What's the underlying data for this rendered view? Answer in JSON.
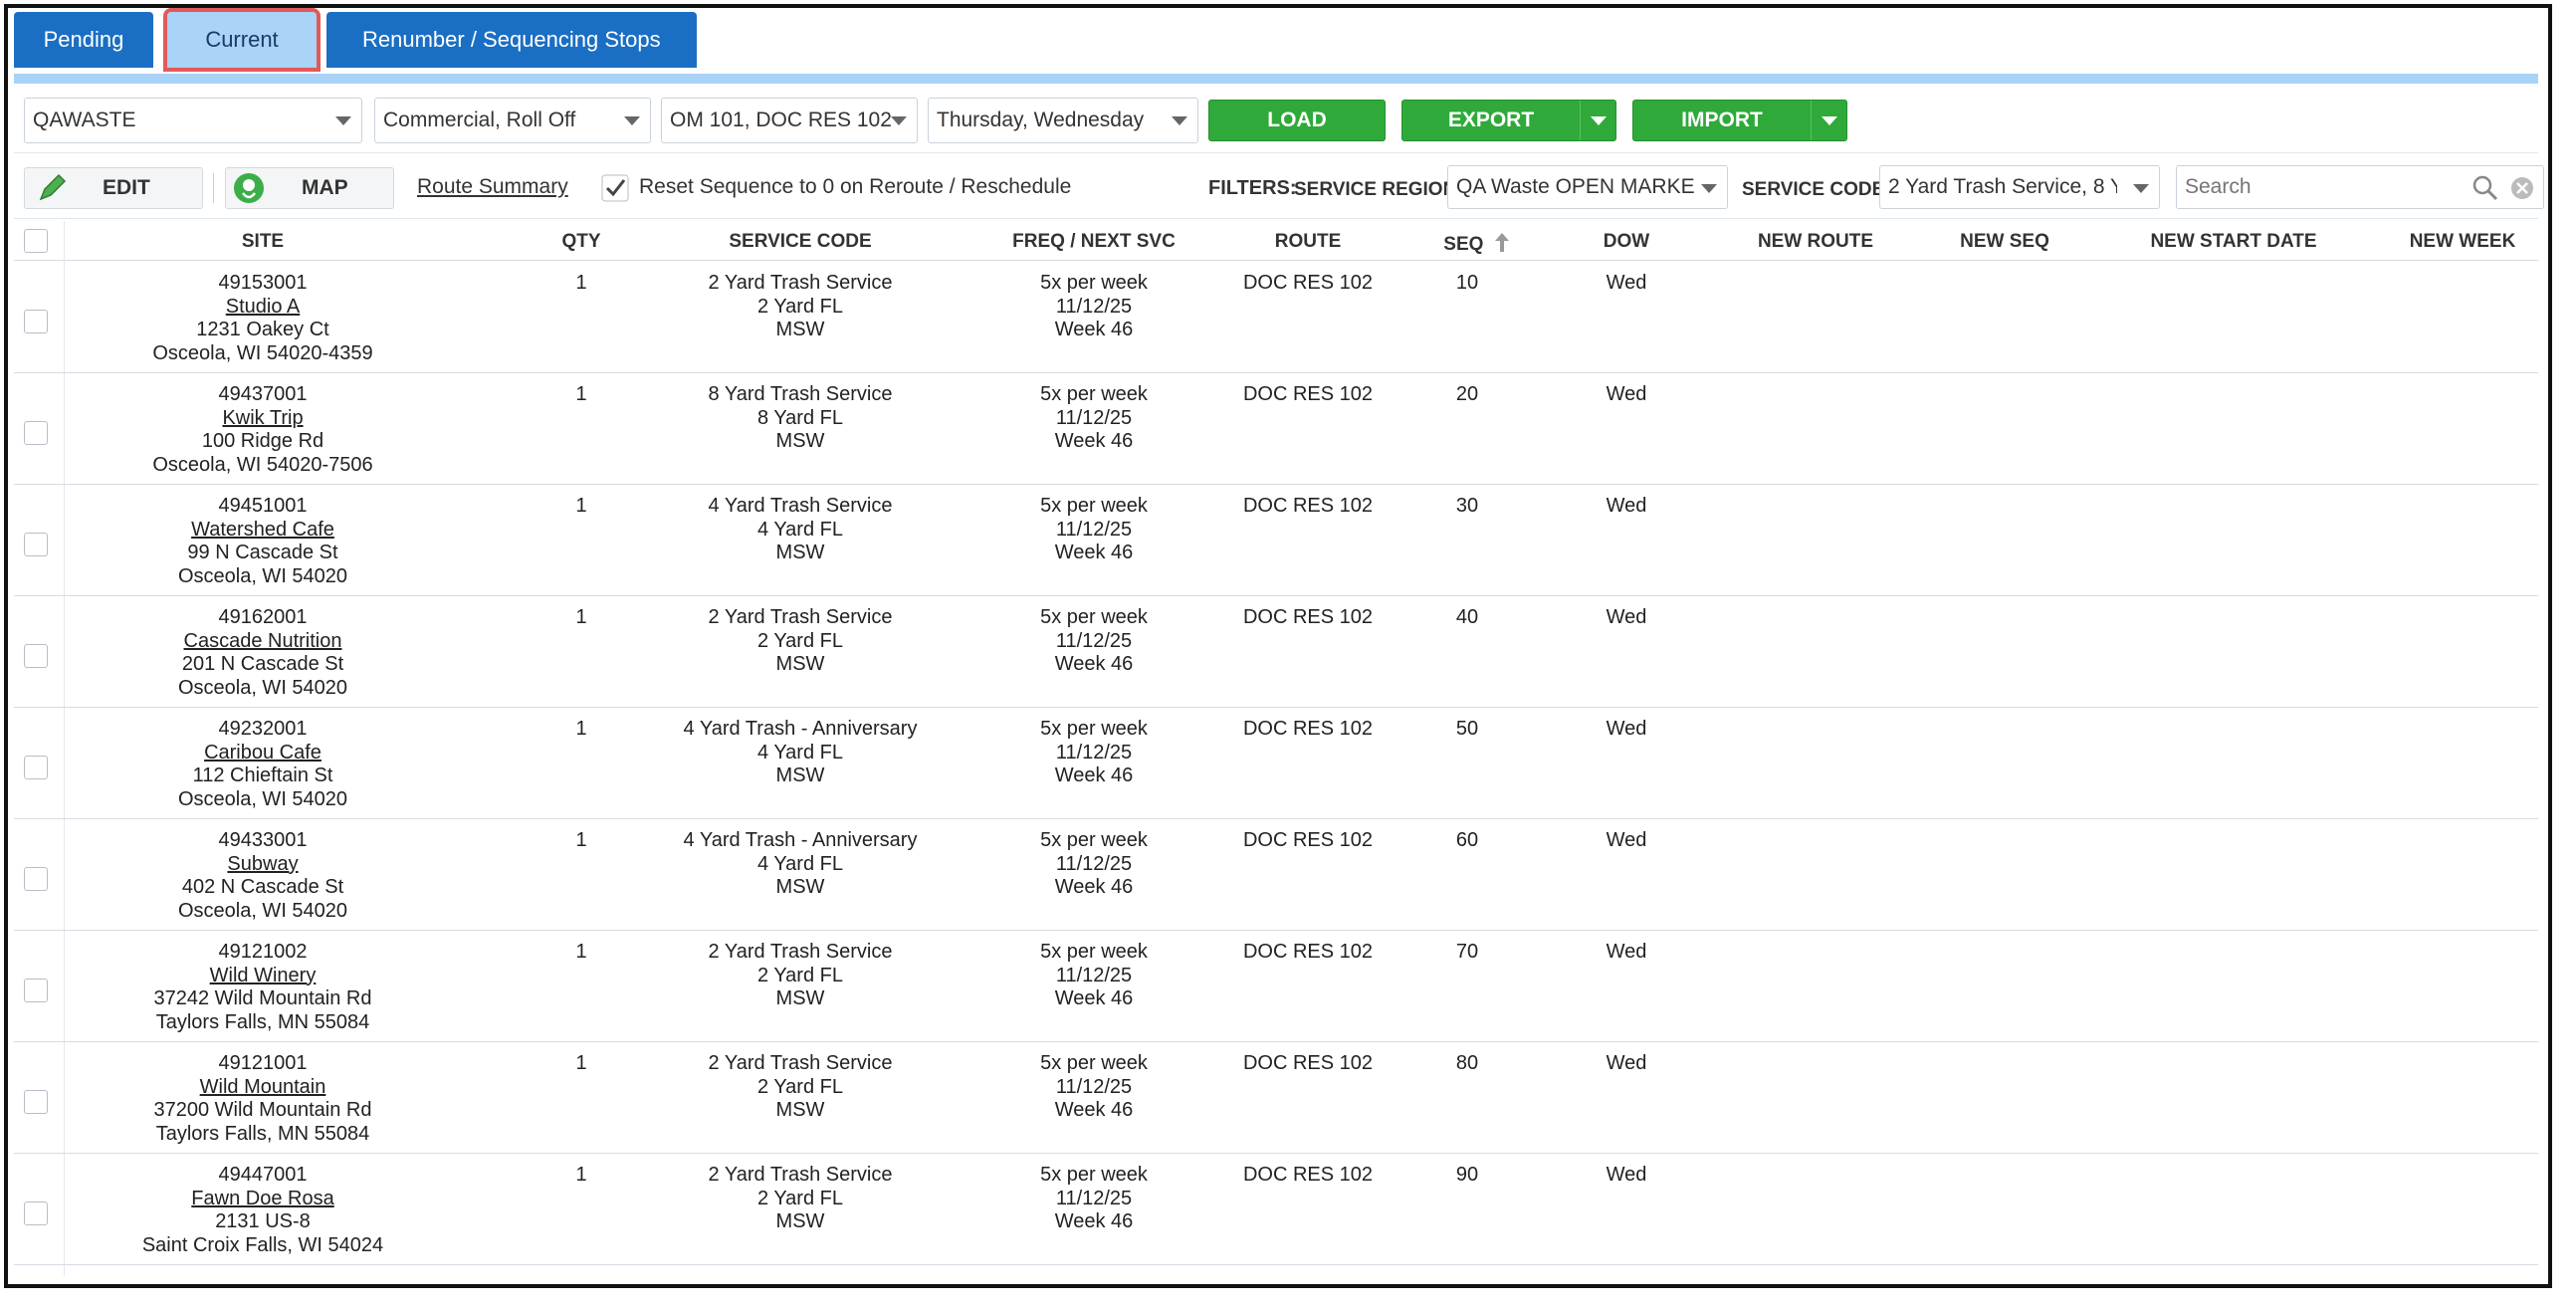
{
  "tabs": [
    {
      "label": "Pending"
    },
    {
      "label": "Current"
    },
    {
      "label": "Renumber / Sequencing Stops"
    }
  ],
  "toolbar1": {
    "company": "QAWASTE",
    "category": "Commercial, Roll Off",
    "routes": "OM 101, DOC RES 102",
    "days": "Thursday, Wednesday",
    "load_label": "LOAD",
    "export_label": "EXPORT",
    "import_label": "IMPORT"
  },
  "toolbar2": {
    "edit_label": "EDIT",
    "map_label": "MAP",
    "route_summary_label": "Route Summary",
    "reset_sequence_label": "Reset Sequence to 0 on Reroute / Reschedule",
    "reset_sequence_checked": true,
    "filters_label": "FILTERS:",
    "service_region_label": "SERVICE REGION",
    "service_region_value": "QA Waste OPEN MARKE",
    "service_code_label": "SERVICE CODE",
    "service_code_value": "2 Yard Trash Service, 8 Y",
    "search_placeholder": "Search"
  },
  "table": {
    "headers": {
      "site": "SITE",
      "qty": "QTY",
      "service_code": "SERVICE CODE",
      "freq": "FREQ / NEXT SVC",
      "route": "ROUTE",
      "seq": "SEQ",
      "dow": "DOW",
      "new_route": "NEW ROUTE",
      "new_seq": "NEW SEQ",
      "new_start_date": "NEW START DATE",
      "new_week": "NEW WEEK"
    },
    "rows": [
      {
        "id": "49153001",
        "name": "Studio A",
        "addr1": "1231 Oakey Ct",
        "addr2": "Osceola, WI 54020-4359",
        "qty": "1",
        "svc1": "2 Yard Trash Service",
        "svc2": "2 Yard FL",
        "svc3": "MSW",
        "freq": "5x per week",
        "next": "11/12/25",
        "week": "Week 46",
        "route": "DOC RES 102",
        "seq": "10",
        "dow": "Wed"
      },
      {
        "id": "49437001",
        "name": "Kwik Trip",
        "addr1": "100 Ridge Rd",
        "addr2": "Osceola, WI 54020-7506",
        "qty": "1",
        "svc1": "8 Yard Trash Service",
        "svc2": "8 Yard FL",
        "svc3": "MSW",
        "freq": "5x per week",
        "next": "11/12/25",
        "week": "Week 46",
        "route": "DOC RES 102",
        "seq": "20",
        "dow": "Wed"
      },
      {
        "id": "49451001",
        "name": "Watershed Cafe",
        "addr1": "99 N Cascade St",
        "addr2": "Osceola, WI 54020",
        "qty": "1",
        "svc1": "4 Yard Trash Service",
        "svc2": "4 Yard FL",
        "svc3": "MSW",
        "freq": "5x per week",
        "next": "11/12/25",
        "week": "Week 46",
        "route": "DOC RES 102",
        "seq": "30",
        "dow": "Wed"
      },
      {
        "id": "49162001",
        "name": "Cascade Nutrition",
        "addr1": "201 N Cascade St",
        "addr2": "Osceola, WI 54020",
        "qty": "1",
        "svc1": "2 Yard Trash Service",
        "svc2": "2 Yard FL",
        "svc3": "MSW",
        "freq": "5x per week",
        "next": "11/12/25",
        "week": "Week 46",
        "route": "DOC RES 102",
        "seq": "40",
        "dow": "Wed"
      },
      {
        "id": "49232001",
        "name": "Caribou Cafe",
        "addr1": "112 Chieftain St",
        "addr2": "Osceola, WI 54020",
        "qty": "1",
        "svc1": "4 Yard Trash - Anniversary",
        "svc2": "4 Yard FL",
        "svc3": "MSW",
        "freq": "5x per week",
        "next": "11/12/25",
        "week": "Week 46",
        "route": "DOC RES 102",
        "seq": "50",
        "dow": "Wed"
      },
      {
        "id": "49433001",
        "name": "Subway",
        "addr1": "402 N Cascade St",
        "addr2": "Osceola, WI 54020",
        "qty": "1",
        "svc1": "4 Yard Trash - Anniversary",
        "svc2": "4 Yard FL",
        "svc3": "MSW",
        "freq": "5x per week",
        "next": "11/12/25",
        "week": "Week 46",
        "route": "DOC RES 102",
        "seq": "60",
        "dow": "Wed"
      },
      {
        "id": "49121002",
        "name": "Wild Winery",
        "addr1": "37242 Wild Mountain Rd",
        "addr2": "Taylors Falls, MN 55084",
        "qty": "1",
        "svc1": "2 Yard Trash Service",
        "svc2": "2 Yard FL",
        "svc3": "MSW",
        "freq": "5x per week",
        "next": "11/12/25",
        "week": "Week 46",
        "route": "DOC RES 102",
        "seq": "70",
        "dow": "Wed"
      },
      {
        "id": "49121001",
        "name": "Wild Mountain",
        "addr1": "37200 Wild Mountain Rd",
        "addr2": "Taylors Falls, MN 55084",
        "qty": "1",
        "svc1": "2 Yard Trash Service",
        "svc2": "2 Yard FL",
        "svc3": "MSW",
        "freq": "5x per week",
        "next": "11/12/25",
        "week": "Week 46",
        "route": "DOC RES 102",
        "seq": "80",
        "dow": "Wed"
      },
      {
        "id": "49447001",
        "name": "Fawn Doe Rosa",
        "addr1": "2131 US-8",
        "addr2": "Saint Croix Falls, WI 54024",
        "qty": "1",
        "svc1": "2 Yard Trash Service",
        "svc2": "2 Yard FL",
        "svc3": "MSW",
        "freq": "5x per week",
        "next": "11/12/25",
        "week": "Week 46",
        "route": "DOC RES 102",
        "seq": "90",
        "dow": "Wed"
      }
    ]
  },
  "colors": {
    "tab_blue": "#1a6fc4",
    "tab_active": "#a9d3f7",
    "highlight_red": "#e05a5a",
    "action_green": "#2faa3a"
  }
}
